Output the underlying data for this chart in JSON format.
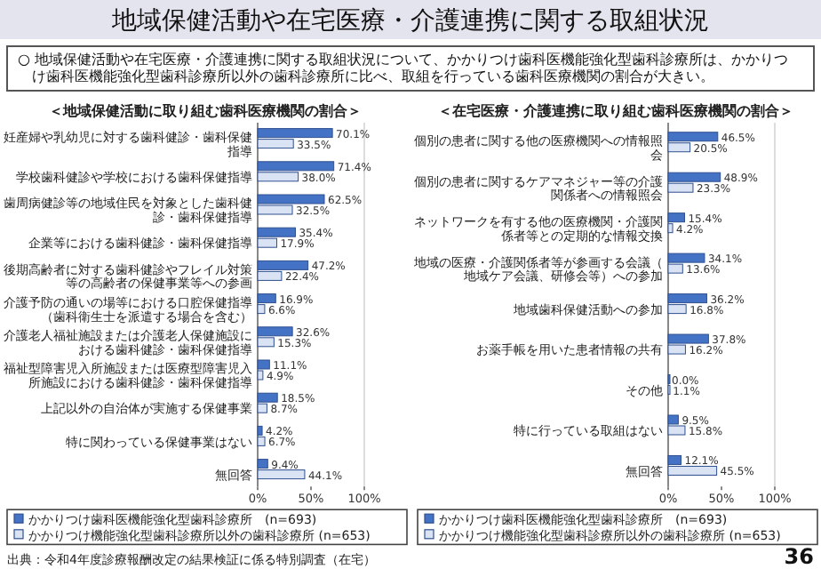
{
  "chart_data": [
    {
      "type": "bar",
      "orientation": "horizontal",
      "title": "＜地域保健活動に取り組む歯科医療機関の割合＞",
      "annotations": [
        "地域保健活動や在宅医療・介護連携に関する取組状況",
        "○ 地域保健活動や在宅医療・介護連携に関する取組状況について、かかりつけ歯科医機能強化型歯科診療所は、かかりつけ歯科医機能強化型歯科診療所以外の歯科診療所に比べ、取組を行っている歯科医療機関の割合が大きい。",
        "出典：令和4年度診療報酬改定の結果検証に係る特別調査（在宅）"
      ],
      "categories": [
        "妊産婦や乳幼児に対する歯科健診・歯科保健指導",
        "学校歯科健診や学校における歯科保健指導",
        "歯周病健診等の地域住民を対象とした歯科健診・歯科保健指導",
        "企業等における歯科健診・歯科保健指導",
        "後期高齢者に対する歯科健診やフレイル対策等の高齢者の保健事業等への参画",
        "介護予防の通いの場等における口腔保健指導（歯科衛生士を派遣する場合を含む）",
        "介護老人福祉施設または介護老人保健施設における歯科健診・歯科保健指導",
        "福祉型障害児入所施設または医療型障害児入所施設における歯科健診・歯科保健指導",
        "上記以外の自治体が実施する保健事業",
        "特に関わっている保健事業はない",
        "無回答"
      ],
      "series": [
        {
          "name": "かかりつけ歯科医機能強化型歯科診療所　(n=693)",
          "color": "#4472c4",
          "values": [
            70.1,
            71.4,
            62.5,
            35.4,
            47.2,
            16.9,
            32.6,
            11.1,
            18.5,
            4.2,
            9.4
          ],
          "value_labels": [
            "70.1%",
            "71.4%",
            "62.5%",
            "35.4%",
            "47.2%",
            "16.9%",
            "32.6%",
            "11.1%",
            "18.5%",
            "4.2%",
            "9.4%"
          ]
        },
        {
          "name": "かかりつけ機能強化型歯科診療所以外の歯科診療所 (n=653)",
          "color": "#dae3f3",
          "values": [
            33.5,
            38.0,
            32.5,
            17.9,
            22.4,
            6.6,
            15.3,
            4.9,
            8.7,
            6.7,
            44.1
          ],
          "value_labels": [
            "33.5%",
            "38.0%",
            "32.5%",
            "17.9%",
            "22.4%",
            "6.6%",
            "15.3%",
            "4.9%",
            "8.7%",
            "6.7%",
            "44.1%"
          ]
        }
      ],
      "xlim": [
        0,
        100
      ],
      "xticks": [
        {
          "value": 0,
          "label": "0%"
        },
        {
          "value": 50,
          "label": "50%"
        },
        {
          "value": 100,
          "label": "100%"
        }
      ],
      "legend": "bottom"
    },
    {
      "type": "bar",
      "orientation": "horizontal",
      "title": "＜在宅医療・介護連携に取り組む歯科医療機関の割合＞",
      "annotations": [
        "36"
      ],
      "categories": [
        "個別の患者に関する他の医療機関への情報照会",
        "個別の患者に関するケアマネジャー等の介護関係者への情報照会",
        "ネットワークを有する他の医療機関・介護関係者等との定期的な情報交換",
        "地域の医療・介護関係者等が参画する会議（地域ケア会議、研修会等）への参加",
        "地域歯科保健活動への参加",
        "お薬手帳を用いた患者情報の共有",
        "その他",
        "特に行っている取組はない",
        "無回答"
      ],
      "series": [
        {
          "name": "かかりつけ歯科医機能強化型歯科診療所　(n=693)",
          "color": "#4472c4",
          "values": [
            46.5,
            48.9,
            15.4,
            34.1,
            36.2,
            37.8,
            0.0,
            9.5,
            12.1
          ],
          "value_labels": [
            "46.5%",
            "48.9%",
            "15.4%",
            "34.1%",
            "36.2%",
            "37.8%",
            "0.0%",
            "9.5%",
            "12.1%"
          ]
        },
        {
          "name": "かかりつけ機能強化型歯科診療所以外の歯科診療所 (n=653)",
          "color": "#dae3f3",
          "values": [
            20.5,
            23.3,
            4.2,
            13.6,
            16.8,
            16.2,
            1.1,
            15.8,
            45.5
          ],
          "value_labels": [
            "20.5%",
            "23.3%",
            "4.2%",
            "13.6%",
            "16.8%",
            "16.2%",
            "1.1%",
            "15.8%",
            "45.5%"
          ]
        }
      ],
      "xlim": [
        0,
        100
      ],
      "xticks": [
        {
          "value": 0,
          "label": "0%"
        },
        {
          "value": 50,
          "label": "50%"
        },
        {
          "value": 100,
          "label": "100%"
        }
      ],
      "legend": "bottom"
    }
  ]
}
